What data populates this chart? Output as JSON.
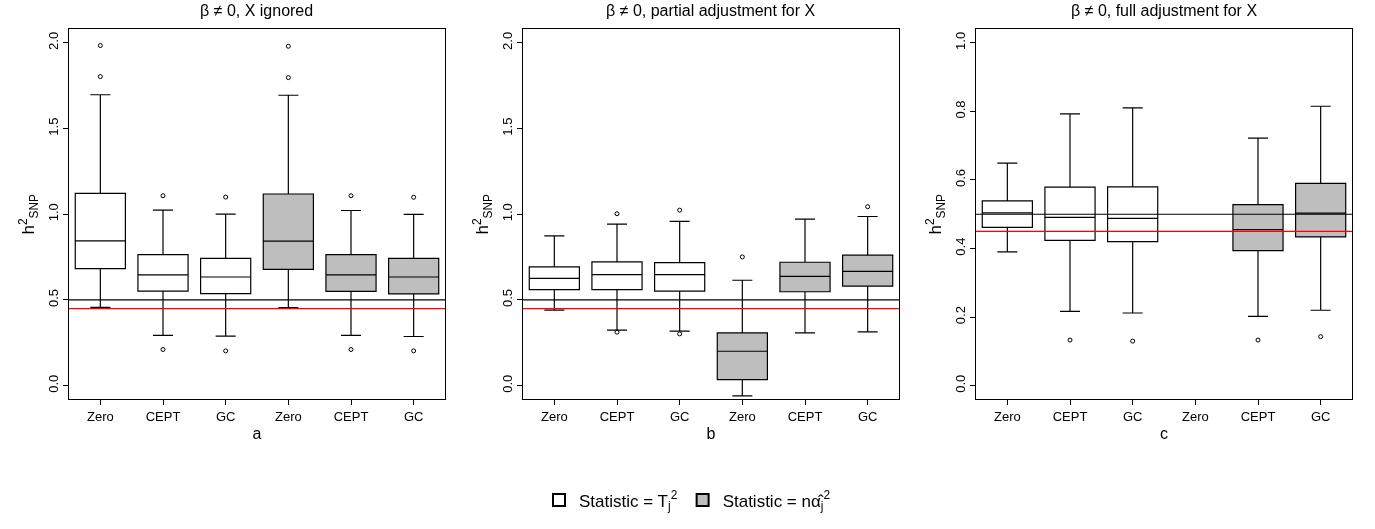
{
  "chart_data": [
    {
      "type": "box",
      "title": "β ≠ 0, X ignored",
      "xlabel": "a",
      "ylabel": "h$^{2}$$_{SNP}$",
      "categories": [
        "Zero",
        "CEPT",
        "GC",
        "Zero",
        "CEPT",
        "GC"
      ],
      "ylim": [
        -0.08,
        2.08
      ],
      "yticks": [
        {
          "value": 0,
          "label": "0.0"
        },
        0.5,
        {
          "value": 1,
          "label": "1.0"
        },
        1.5,
        {
          "value": 2,
          "label": "2.0"
        }
      ],
      "legend": "bottom",
      "ref_lines": [
        {
          "axis": "y",
          "value": 0.5,
          "color": "#000000"
        },
        {
          "axis": "y",
          "value": 0.45,
          "color": "#ff0000"
        }
      ],
      "series": [
        {
          "name": "Statistic = T$_{j}$$^{2}$",
          "color": "#ffffff",
          "boxes": [
            {
              "low": 0.457,
              "q1": 0.683,
              "median": 0.845,
              "q3": 1.122,
              "high": 1.697,
              "outliers": [
                1.803,
                1.984
              ]
            },
            {
              "low": 0.293,
              "q1": 0.552,
              "median": 0.646,
              "q3": 0.765,
              "high": 1.024,
              "outliers": [
                0.211,
                1.108
              ]
            },
            {
              "low": 0.289,
              "q1": 0.537,
              "median": 0.634,
              "q3": 0.743,
              "high": 1.001,
              "outliers": [
                0.203,
                1.1
              ]
            },
            null,
            null,
            null
          ]
        },
        {
          "name": "Statistic = nα̂$_{j}$$^{2}$",
          "color": "#bebebe",
          "boxes": [
            null,
            null,
            null,
            {
              "low": 0.455,
              "q1": 0.679,
              "median": 0.843,
              "q3": 1.118,
              "high": 1.694,
              "outliers": [
                1.797,
                1.98
              ]
            },
            {
              "low": 0.293,
              "q1": 0.55,
              "median": 0.646,
              "q3": 0.765,
              "high": 1.022,
              "outliers": [
                0.211,
                1.108
              ]
            },
            {
              "low": 0.287,
              "q1": 0.535,
              "median": 0.634,
              "q3": 0.743,
              "high": 0.999,
              "outliers": [
                0.203,
                1.099
              ]
            }
          ]
        }
      ]
    },
    {
      "type": "box",
      "title": "β ≠ 0, partial adjustment for X",
      "xlabel": "b",
      "ylabel": "h$^{2}$$_{SNP}$",
      "categories": [
        "Zero",
        "CEPT",
        "GC",
        "Zero",
        "CEPT",
        "GC"
      ],
      "ylim": [
        -0.08,
        2.08
      ],
      "yticks": [
        {
          "value": 0,
          "label": "0.0"
        },
        0.5,
        {
          "value": 1,
          "label": "1.0"
        },
        1.5,
        {
          "value": 2,
          "label": "2.0"
        }
      ],
      "legend": "bottom",
      "ref_lines": [
        {
          "axis": "y",
          "value": 0.5,
          "color": "#000000"
        },
        {
          "axis": "y",
          "value": 0.45,
          "color": "#ff0000"
        }
      ],
      "series": [
        {
          "name": "Statistic = T$_{j}$$^{2}$",
          "color": "#ffffff",
          "boxes": [
            {
              "low": 0.441,
              "q1": 0.56,
              "median": 0.626,
              "q3": 0.693,
              "high": 0.874
            },
            {
              "low": 0.324,
              "q1": 0.56,
              "median": 0.648,
              "q3": 0.722,
              "high": 0.942,
              "outliers": [
                0.312,
                1.003
              ]
            },
            {
              "low": 0.318,
              "q1": 0.552,
              "median": 0.648,
              "q3": 0.718,
              "high": 0.958,
              "outliers": [
                0.302,
                1.024
              ]
            },
            null,
            null,
            null
          ]
        },
        {
          "name": "Statistic = nα̂$_{j}$$^{2}$",
          "color": "#bebebe",
          "boxes": [
            null,
            null,
            null,
            {
              "low": -0.06,
              "q1": 0.035,
              "median": 0.201,
              "q3": 0.308,
              "high": 0.615,
              "outliers": [
                0.751
              ]
            },
            {
              "low": 0.308,
              "q1": 0.548,
              "median": 0.638,
              "q3": 0.72,
              "high": 0.972
            },
            {
              "low": 0.314,
              "q1": 0.581,
              "median": 0.667,
              "q3": 0.761,
              "high": 0.987,
              "outliers": [
                1.044
              ]
            }
          ]
        }
      ]
    },
    {
      "type": "box",
      "title": "β ≠ 0, full adjustment for X",
      "xlabel": "c",
      "ylabel": "h$^{2}$$_{SNP}$",
      "categories": [
        "Zero",
        "CEPT",
        "GC",
        "Zero",
        "CEPT",
        "GC"
      ],
      "ylim": [
        -0.04,
        1.04
      ],
      "yticks": [
        {
          "value": 0,
          "label": "0.0"
        },
        0.2,
        0.4,
        0.6,
        0.8,
        {
          "value": 1,
          "label": "1.0"
        }
      ],
      "legend": "bottom",
      "ref_lines": [
        {
          "axis": "y",
          "value": 0.5,
          "color": "#000000"
        },
        {
          "axis": "y",
          "value": 0.45,
          "color": "#ff0000"
        }
      ],
      "series": [
        {
          "name": "Statistic = T$_{j}$$^{2}$",
          "color": "#ffffff",
          "boxes": [
            {
              "low": 0.39,
              "q1": 0.462,
              "median": 0.504,
              "q3": 0.539,
              "high": 0.649
            },
            {
              "low": 0.217,
              "q1": 0.424,
              "median": 0.491,
              "q3": 0.579,
              "high": 0.793,
              "outliers": [
                0.133
              ]
            },
            {
              "low": 0.212,
              "q1": 0.42,
              "median": 0.488,
              "q3": 0.58,
              "high": 0.81,
              "outliers": [
                0.13
              ]
            },
            null,
            null,
            null
          ]
        },
        {
          "name": "Statistic = nα̂$_{j}$$^{2}$",
          "color": "#bebebe",
          "boxes": [
            null,
            null,
            null,
            null,
            {
              "low": 0.202,
              "q1": 0.394,
              "median": 0.455,
              "q3": 0.528,
              "high": 0.722,
              "outliers": [
                0.133
              ]
            },
            {
              "low": 0.22,
              "q1": 0.434,
              "median": 0.503,
              "q3": 0.59,
              "high": 0.815,
              "outliers": [
                0.143
              ]
            }
          ]
        }
      ]
    }
  ]
}
